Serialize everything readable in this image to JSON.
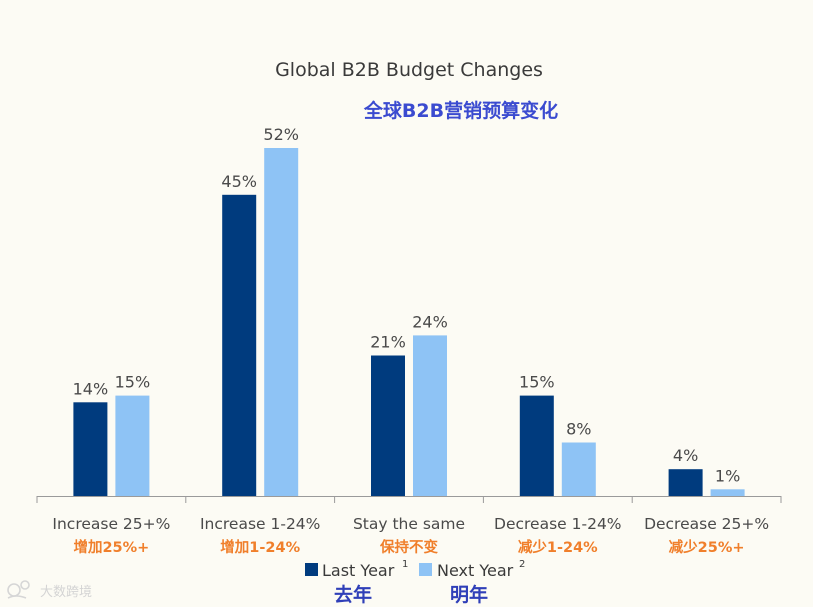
{
  "chart_data": {
    "type": "bar",
    "title": "Global B2B Budget Changes",
    "subtitle": "全球B2B营销预算变化",
    "categories": [
      "Increase 25+%",
      "Increase 1-24%",
      "Stay the same",
      "Decrease 1-24%",
      "Decrease 25+%"
    ],
    "categories_cn": [
      "增加25%+",
      "增加1-24%",
      "保持不变",
      "减少1-24%",
      "减少25%+"
    ],
    "series": [
      {
        "name": "Last Year",
        "superscript": "1",
        "name_cn": "去年",
        "color": "#003b7e",
        "values": [
          14,
          45,
          21,
          15,
          4
        ]
      },
      {
        "name": "Next Year",
        "superscript": "2",
        "name_cn": "明年",
        "color": "#8ec3f5",
        "values": [
          15,
          52,
          24,
          8,
          1
        ]
      }
    ],
    "value_suffix": "%",
    "ylim": [
      0,
      52
    ],
    "xlabel": "",
    "ylabel": "",
    "grid": false,
    "legend_position": "bottom-center"
  },
  "colors": {
    "background": "#fcfbf4",
    "axis": "#9a9a9a",
    "category_cn": "#f07f2b",
    "subtitle": "#3b4bd0",
    "legend_cn": "#2f3fb8"
  },
  "watermark": {
    "text": "大数跨境"
  }
}
